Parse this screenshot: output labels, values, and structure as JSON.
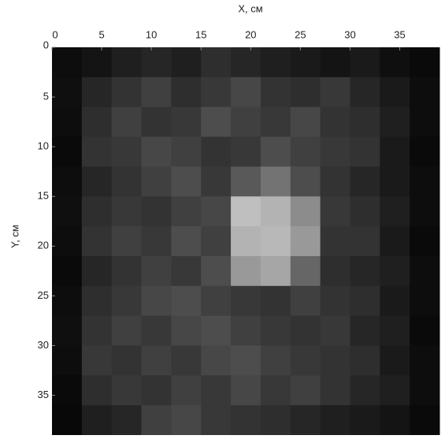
{
  "chart_data": {
    "type": "heatmap",
    "xlabel": "X, см",
    "ylabel": "Y, см",
    "xlim": [
      0,
      39
    ],
    "ylim": [
      0,
      39
    ],
    "y_inverted": true,
    "xticks": [
      0,
      5,
      10,
      15,
      20,
      25,
      30,
      35
    ],
    "yticks": [
      0,
      5,
      10,
      15,
      20,
      25,
      30,
      35
    ],
    "xbins": [
      0,
      3,
      6,
      9,
      12,
      15,
      18,
      21,
      24,
      27,
      30,
      33,
      36,
      39
    ],
    "ybins": [
      0,
      3,
      6,
      9,
      12,
      15,
      18,
      21,
      24,
      27,
      30,
      33,
      36,
      39
    ],
    "colormap": "gray",
    "vlim": [
      0,
      1
    ],
    "values": [
      [
        0.05,
        0.08,
        0.12,
        0.15,
        0.12,
        0.18,
        0.15,
        0.12,
        0.1,
        0.08,
        0.1,
        0.06,
        0.04
      ],
      [
        0.06,
        0.15,
        0.2,
        0.25,
        0.18,
        0.22,
        0.28,
        0.2,
        0.18,
        0.22,
        0.15,
        0.1,
        0.05
      ],
      [
        0.05,
        0.18,
        0.25,
        0.2,
        0.22,
        0.3,
        0.25,
        0.22,
        0.28,
        0.2,
        0.18,
        0.12,
        0.05
      ],
      [
        0.04,
        0.2,
        0.22,
        0.28,
        0.25,
        0.2,
        0.22,
        0.3,
        0.25,
        0.22,
        0.2,
        0.1,
        0.04
      ],
      [
        0.05,
        0.15,
        0.2,
        0.25,
        0.3,
        0.22,
        0.35,
        0.45,
        0.3,
        0.2,
        0.15,
        0.1,
        0.05
      ],
      [
        0.06,
        0.18,
        0.22,
        0.2,
        0.25,
        0.28,
        0.75,
        0.7,
        0.55,
        0.22,
        0.18,
        0.12,
        0.05
      ],
      [
        0.05,
        0.2,
        0.25,
        0.22,
        0.3,
        0.25,
        0.7,
        0.72,
        0.6,
        0.2,
        0.2,
        0.1,
        0.04
      ],
      [
        0.04,
        0.15,
        0.2,
        0.25,
        0.22,
        0.3,
        0.6,
        0.65,
        0.4,
        0.18,
        0.15,
        0.12,
        0.05
      ],
      [
        0.05,
        0.18,
        0.22,
        0.28,
        0.3,
        0.25,
        0.22,
        0.2,
        0.25,
        0.2,
        0.18,
        0.1,
        0.05
      ],
      [
        0.06,
        0.2,
        0.25,
        0.22,
        0.28,
        0.3,
        0.25,
        0.22,
        0.2,
        0.22,
        0.15,
        0.12,
        0.04
      ],
      [
        0.05,
        0.22,
        0.2,
        0.25,
        0.22,
        0.28,
        0.3,
        0.25,
        0.22,
        0.2,
        0.18,
        0.1,
        0.05
      ],
      [
        0.04,
        0.18,
        0.22,
        0.2,
        0.25,
        0.22,
        0.28,
        0.22,
        0.25,
        0.2,
        0.15,
        0.12,
        0.05
      ],
      [
        0.03,
        0.12,
        0.15,
        0.25,
        0.28,
        0.22,
        0.2,
        0.18,
        0.15,
        0.12,
        0.1,
        0.08,
        0.04
      ]
    ]
  }
}
